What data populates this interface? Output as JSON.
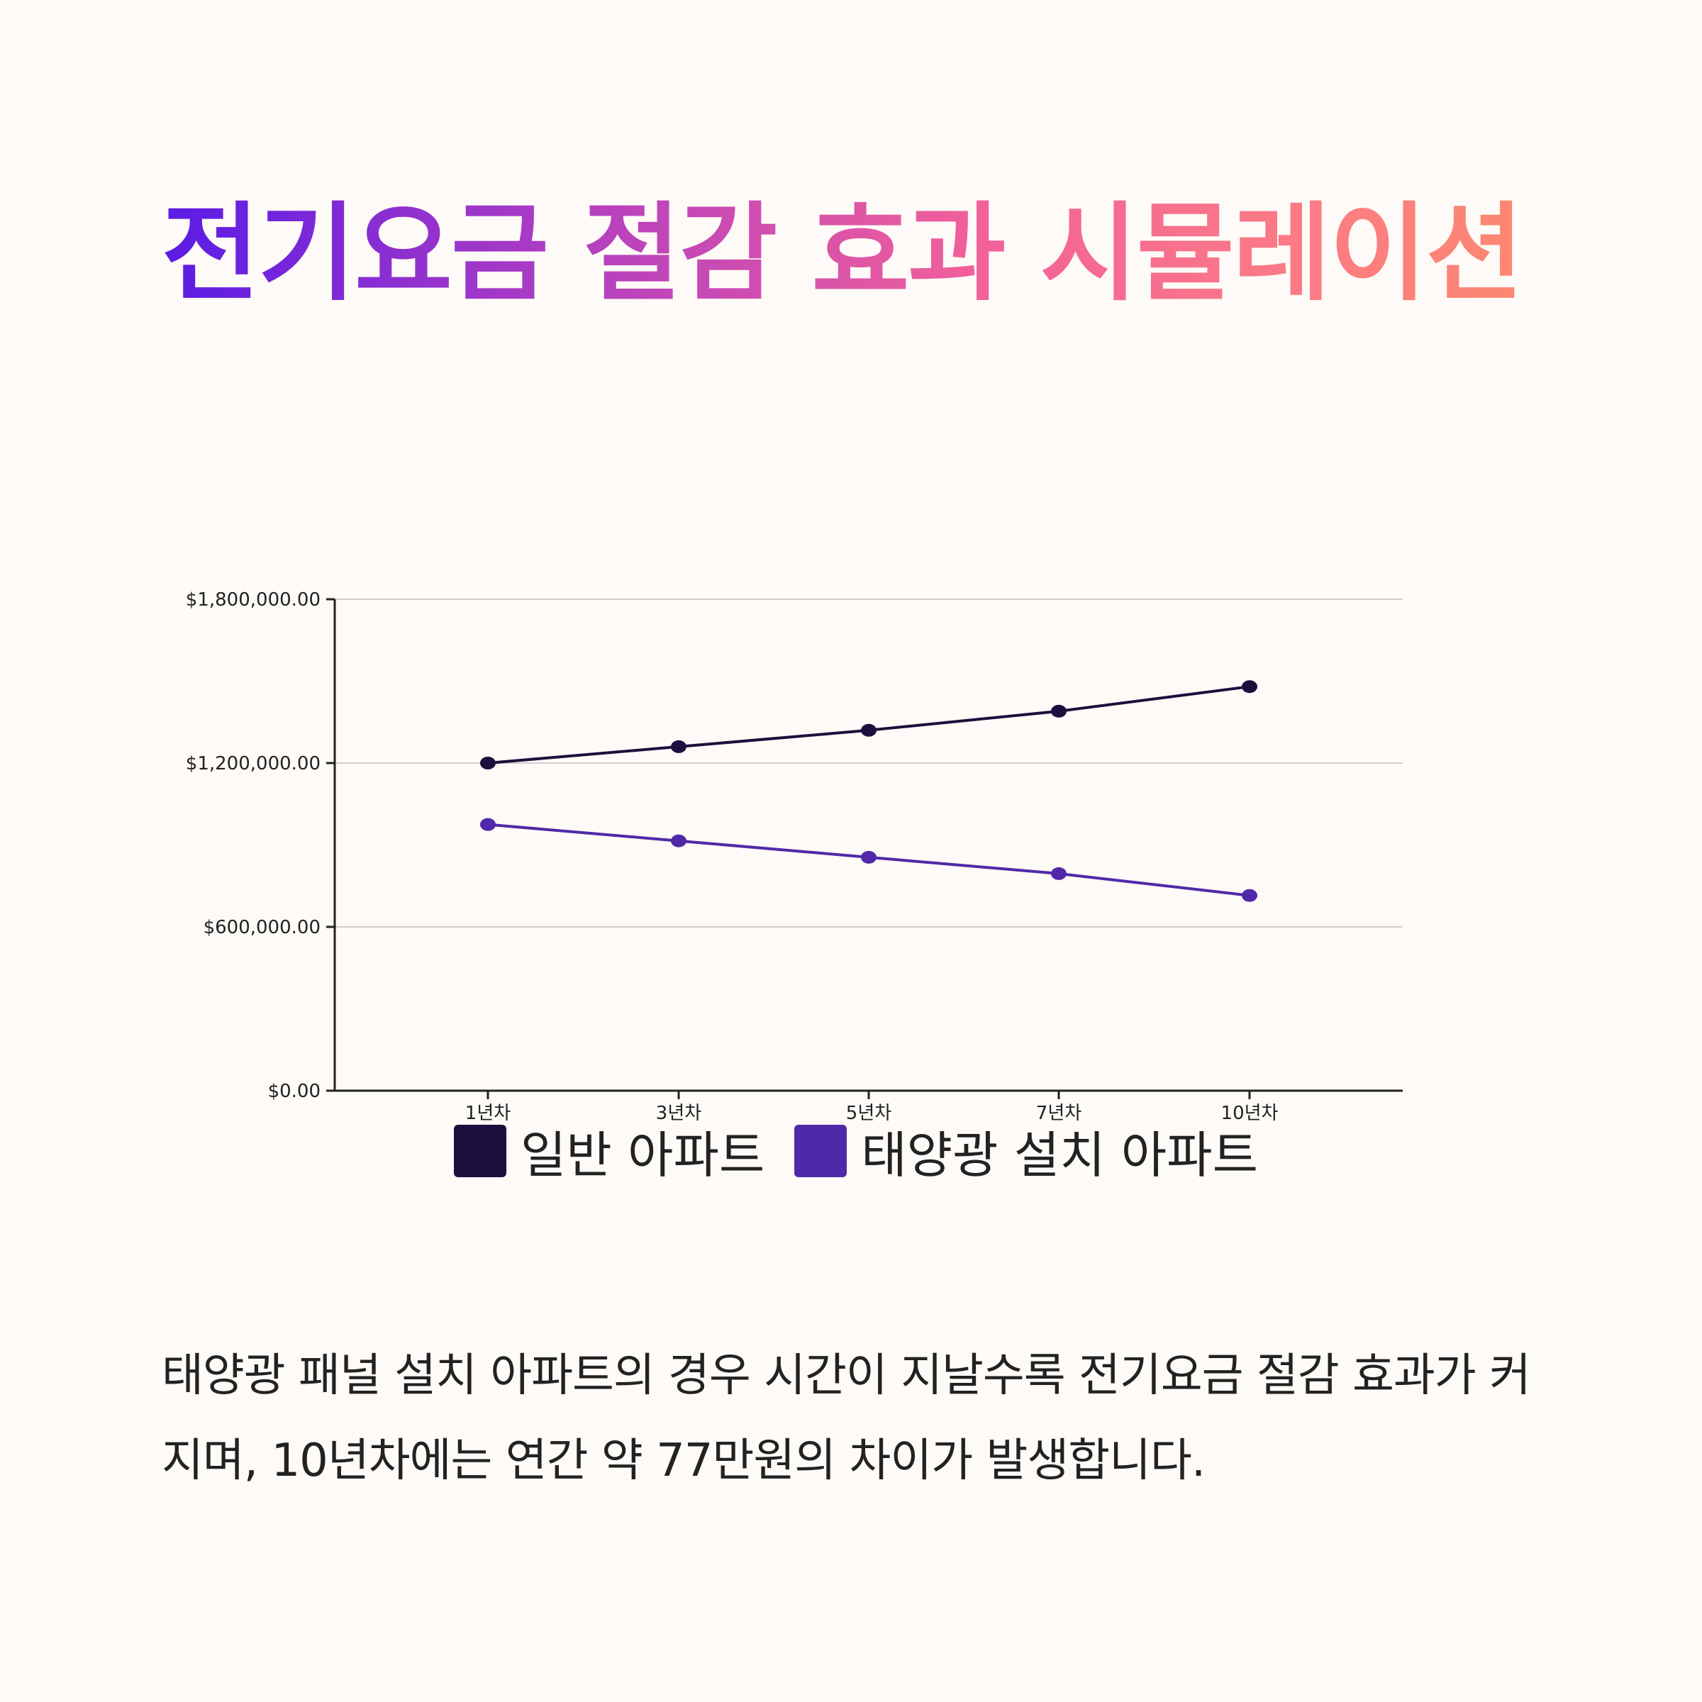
{
  "title": "전기요금 절감 효과 시뮬레이션",
  "description": "태양광 패널 설치 아파트의 경우 시간이 지날수록 전기요금 절감 효과가 커지며, 10년차에는 연간 약 77만원의 차이가 발생합니다.",
  "colors": {
    "background": "#fdfaf7",
    "series_general": "#1c0f3d",
    "series_solar": "#5029a8",
    "axis": "#222222",
    "grid": "#cfcfcf"
  },
  "chart_data": {
    "type": "line",
    "categories": [
      "1년차",
      "3년차",
      "5년차",
      "7년차",
      "10년차"
    ],
    "series": [
      {
        "name": "일반 아파트",
        "values": [
          1200000,
          1260000,
          1320000,
          1390000,
          1480000
        ]
      },
      {
        "name": "태양광 설치 아파트",
        "values": [
          975000,
          915000,
          855000,
          795000,
          715000
        ]
      }
    ],
    "y_ticks": [
      "$0.00",
      "$600,000.00",
      "$1,200,000.00",
      "$1,800,000.00"
    ],
    "y_tick_values": [
      0,
      600000,
      1200000,
      1800000
    ],
    "ylim": [
      0,
      1800000
    ],
    "grid": true,
    "legend_position": "bottom"
  }
}
